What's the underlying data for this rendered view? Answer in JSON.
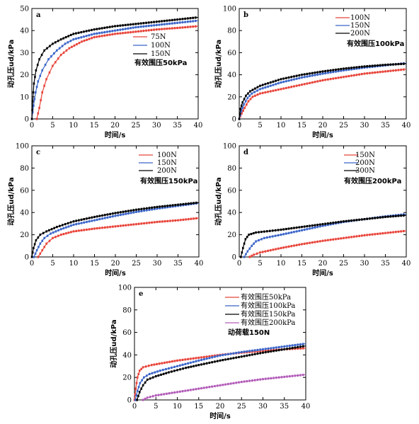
{
  "chart_data": [
    {
      "panel_label": "a",
      "type": "line",
      "xlabel": "时间/s",
      "ylabel": "动孔压ud/kPa",
      "xlim": [
        0,
        40
      ],
      "ylim": [
        0,
        50
      ],
      "xticks": [
        0,
        5,
        10,
        15,
        20,
        25,
        30,
        35,
        40
      ],
      "yticks": [
        0,
        10,
        20,
        30,
        40,
        50
      ],
      "annotation": "有效围压50kPa",
      "legend_position": "center-right",
      "series": [
        {
          "name": "75N",
          "color": "#e8443a",
          "points": [
            [
              1.2,
              0
            ],
            [
              1.8,
              5
            ],
            [
              2.5,
              12
            ],
            [
              3.5,
              18
            ],
            [
              5,
              24
            ],
            [
              7,
              29
            ],
            [
              9,
              32
            ],
            [
              12,
              35
            ],
            [
              15,
              37
            ],
            [
              20,
              38.5
            ],
            [
              25,
              39.5
            ],
            [
              30,
              40.5
            ],
            [
              35,
              41.2
            ],
            [
              40,
              42
            ]
          ]
        },
        {
          "name": "100N",
          "color": "#3a64c8",
          "points": [
            [
              0,
              0
            ],
            [
              0.4,
              6
            ],
            [
              0.9,
              12
            ],
            [
              1.5,
              17
            ],
            [
              2.5,
              22
            ],
            [
              4,
              27
            ],
            [
              6,
              31
            ],
            [
              8,
              34
            ],
            [
              10,
              36
            ],
            [
              15,
              38.5
            ],
            [
              20,
              40
            ],
            [
              25,
              41.5
            ],
            [
              30,
              42.5
            ],
            [
              35,
              43.5
            ],
            [
              40,
              44.5
            ]
          ]
        },
        {
          "name": "150N",
          "color": "#000000",
          "points": [
            [
              0,
              0
            ],
            [
              0.2,
              8
            ],
            [
              0.5,
              16
            ],
            [
              1,
              22
            ],
            [
              1.8,
              27
            ],
            [
              3,
              31
            ],
            [
              5,
              34
            ],
            [
              7,
              36
            ],
            [
              10,
              38.5
            ],
            [
              15,
              40.5
            ],
            [
              20,
              42
            ],
            [
              25,
              43
            ],
            [
              30,
              44
            ],
            [
              35,
              45
            ],
            [
              40,
              46
            ]
          ]
        }
      ]
    },
    {
      "panel_label": "b",
      "type": "line",
      "xlabel": "时间/s",
      "ylabel": "动孔压ud/kPa",
      "xlim": [
        0,
        40
      ],
      "ylim": [
        0,
        100
      ],
      "xticks": [
        0,
        5,
        10,
        15,
        20,
        25,
        30,
        35,
        40
      ],
      "yticks": [
        0,
        20,
        40,
        60,
        80,
        100
      ],
      "annotation": "有效围压100kPa",
      "legend_position": "top-right",
      "series": [
        {
          "name": "100N",
          "color": "#e8443a",
          "points": [
            [
              0,
              0
            ],
            [
              0.6,
              5
            ],
            [
              1.3,
              10
            ],
            [
              2.2,
              16
            ],
            [
              3.2,
              20
            ],
            [
              5,
              23
            ],
            [
              10,
              27
            ],
            [
              15,
              31
            ],
            [
              20,
              35
            ],
            [
              25,
              38
            ],
            [
              30,
              41
            ],
            [
              35,
              43
            ],
            [
              40,
              45
            ]
          ]
        },
        {
          "name": "150N",
          "color": "#3a64c8",
          "points": [
            [
              0,
              0
            ],
            [
              0.5,
              7
            ],
            [
              1.1,
              13
            ],
            [
              2,
              19
            ],
            [
              3,
              23
            ],
            [
              5,
              27
            ],
            [
              10,
              33
            ],
            [
              15,
              37.5
            ],
            [
              20,
              41
            ],
            [
              25,
              44
            ],
            [
              30,
              46.5
            ],
            [
              35,
              48.5
            ],
            [
              40,
              50.5
            ]
          ]
        },
        {
          "name": "200N",
          "color": "#000000",
          "points": [
            [
              0,
              0
            ],
            [
              0.3,
              9
            ],
            [
              0.8,
              15
            ],
            [
              1.6,
              21
            ],
            [
              2.6,
              25
            ],
            [
              5,
              30
            ],
            [
              10,
              36
            ],
            [
              15,
              40
            ],
            [
              20,
              43
            ],
            [
              25,
              45.5
            ],
            [
              30,
              47.5
            ],
            [
              35,
              49
            ],
            [
              40,
              50
            ]
          ]
        }
      ]
    },
    {
      "panel_label": "c",
      "type": "line",
      "xlabel": "时间/s",
      "ylabel": "动孔压ud/kPa",
      "xlim": [
        0,
        40
      ],
      "ylim": [
        0,
        100
      ],
      "xticks": [
        0,
        5,
        10,
        15,
        20,
        25,
        30,
        35,
        40
      ],
      "yticks": [
        0,
        20,
        40,
        60,
        80,
        100
      ],
      "annotation": "有效围压150kPa",
      "legend_position": "top-right",
      "series": [
        {
          "name": "100N",
          "color": "#e8443a",
          "points": [
            [
              1.5,
              0
            ],
            [
              2.5,
              6
            ],
            [
              3.5,
              12
            ],
            [
              5,
              17
            ],
            [
              7,
              20
            ],
            [
              10,
              23
            ],
            [
              15,
              25.5
            ],
            [
              20,
              27.5
            ],
            [
              25,
              29.5
            ],
            [
              30,
              31.5
            ],
            [
              35,
              33
            ],
            [
              40,
              35
            ]
          ]
        },
        {
          "name": "150N",
          "color": "#3a64c8",
          "points": [
            [
              0.5,
              0
            ],
            [
              1.2,
              6
            ],
            [
              2,
              12
            ],
            [
              3,
              17
            ],
            [
              4.5,
              21
            ],
            [
              7,
              25
            ],
            [
              10,
              29
            ],
            [
              15,
              33
            ],
            [
              20,
              37
            ],
            [
              25,
              40.5
            ],
            [
              30,
              43.5
            ],
            [
              35,
              46
            ],
            [
              40,
              48.5
            ]
          ]
        },
        {
          "name": "200N",
          "color": "#000000",
          "points": [
            [
              0,
              0
            ],
            [
              0.4,
              8
            ],
            [
              1,
              15
            ],
            [
              2,
              20
            ],
            [
              3.5,
              23
            ],
            [
              6,
              27
            ],
            [
              10,
              32
            ],
            [
              15,
              36
            ],
            [
              20,
              39.5
            ],
            [
              25,
              42.5
            ],
            [
              30,
              45
            ],
            [
              35,
              47
            ],
            [
              40,
              49
            ]
          ]
        }
      ]
    },
    {
      "panel_label": "d",
      "type": "line",
      "xlabel": "时间/s",
      "ylabel": "动孔压ud/kPa",
      "xlim": [
        0,
        40
      ],
      "ylim": [
        0,
        100
      ],
      "xticks": [
        0,
        5,
        10,
        15,
        20,
        25,
        30,
        35,
        40
      ],
      "yticks": [
        0,
        20,
        40,
        60,
        80,
        100
      ],
      "annotation": "有效围压200kPa",
      "legend_position": "top-right",
      "series": [
        {
          "name": "150N",
          "color": "#e8443a",
          "points": [
            [
              2.5,
              0
            ],
            [
              3.5,
              2
            ],
            [
              5,
              4
            ],
            [
              10,
              8
            ],
            [
              15,
              11.5
            ],
            [
              20,
              14.5
            ],
            [
              25,
              17
            ],
            [
              30,
              19.5
            ],
            [
              35,
              21.5
            ],
            [
              40,
              23.5
            ]
          ]
        },
        {
          "name": "200N",
          "color": "#3a64c8",
          "points": [
            [
              1.2,
              0
            ],
            [
              2,
              5
            ],
            [
              3,
              10
            ],
            [
              4,
              14
            ],
            [
              6,
              17
            ],
            [
              10,
              20
            ],
            [
              15,
              24
            ],
            [
              20,
              28
            ],
            [
              25,
              31.5
            ],
            [
              30,
              34
            ],
            [
              35,
              36.5
            ],
            [
              40,
              38.5
            ]
          ]
        },
        {
          "name": "300N",
          "color": "#000000",
          "points": [
            [
              0.4,
              0
            ],
            [
              0.9,
              8
            ],
            [
              1.5,
              16
            ],
            [
              2.3,
              20
            ],
            [
              4,
              22
            ],
            [
              10,
              24.5
            ],
            [
              15,
              27
            ],
            [
              20,
              29.5
            ],
            [
              25,
              32
            ],
            [
              30,
              34
            ],
            [
              35,
              36
            ],
            [
              40,
              37.5
            ]
          ]
        }
      ]
    },
    {
      "panel_label": "e",
      "type": "line",
      "xlabel": "时间/s",
      "ylabel": "动孔压ud/kPa",
      "xlim": [
        0,
        40
      ],
      "ylim": [
        0,
        100
      ],
      "xticks": [
        0,
        5,
        10,
        15,
        20,
        25,
        30,
        35,
        40
      ],
      "yticks": [
        0,
        20,
        40,
        60,
        80,
        100
      ],
      "annotation": "动荷载150N",
      "legend_position": "top-right",
      "series": [
        {
          "name": "有效围压50kPa",
          "color": "#e8443a",
          "points": [
            [
              0,
              0
            ],
            [
              0.3,
              10
            ],
            [
              0.7,
              20
            ],
            [
              1.2,
              26
            ],
            [
              2,
              29
            ],
            [
              4,
              31
            ],
            [
              7,
              33
            ],
            [
              10,
              35
            ],
            [
              15,
              37.5
            ],
            [
              20,
              40
            ],
            [
              25,
              42
            ],
            [
              30,
              43.5
            ],
            [
              35,
              45
            ],
            [
              40,
              46
            ]
          ]
        },
        {
          "name": "有效围压100kPa",
          "color": "#3a64c8",
          "points": [
            [
              0.2,
              0
            ],
            [
              0.7,
              8
            ],
            [
              1.3,
              15
            ],
            [
              2.2,
              20
            ],
            [
              3.5,
              23
            ],
            [
              6,
              26
            ],
            [
              10,
              30
            ],
            [
              15,
              35
            ],
            [
              20,
              39.5
            ],
            [
              25,
              42.5
            ],
            [
              30,
              45
            ],
            [
              35,
              47.5
            ],
            [
              40,
              50
            ]
          ]
        },
        {
          "name": "有效围压150kPa",
          "color": "#000000",
          "points": [
            [
              0.6,
              0
            ],
            [
              1.2,
              7
            ],
            [
              2,
              13
            ],
            [
              3,
              18
            ],
            [
              5,
              21
            ],
            [
              8,
              24.5
            ],
            [
              12,
              28.5
            ],
            [
              15,
              31
            ],
            [
              20,
              35
            ],
            [
              25,
              38.5
            ],
            [
              30,
              42
            ],
            [
              35,
              45
            ],
            [
              40,
              48
            ]
          ]
        },
        {
          "name": "有效围压200kPa",
          "color": "#b25cb8",
          "points": [
            [
              2,
              0
            ],
            [
              3,
              2
            ],
            [
              5,
              4
            ],
            [
              10,
              7
            ],
            [
              15,
              10
            ],
            [
              20,
              13
            ],
            [
              25,
              16
            ],
            [
              30,
              18.5
            ],
            [
              35,
              20.5
            ],
            [
              40,
              22.5
            ]
          ]
        }
      ]
    }
  ]
}
